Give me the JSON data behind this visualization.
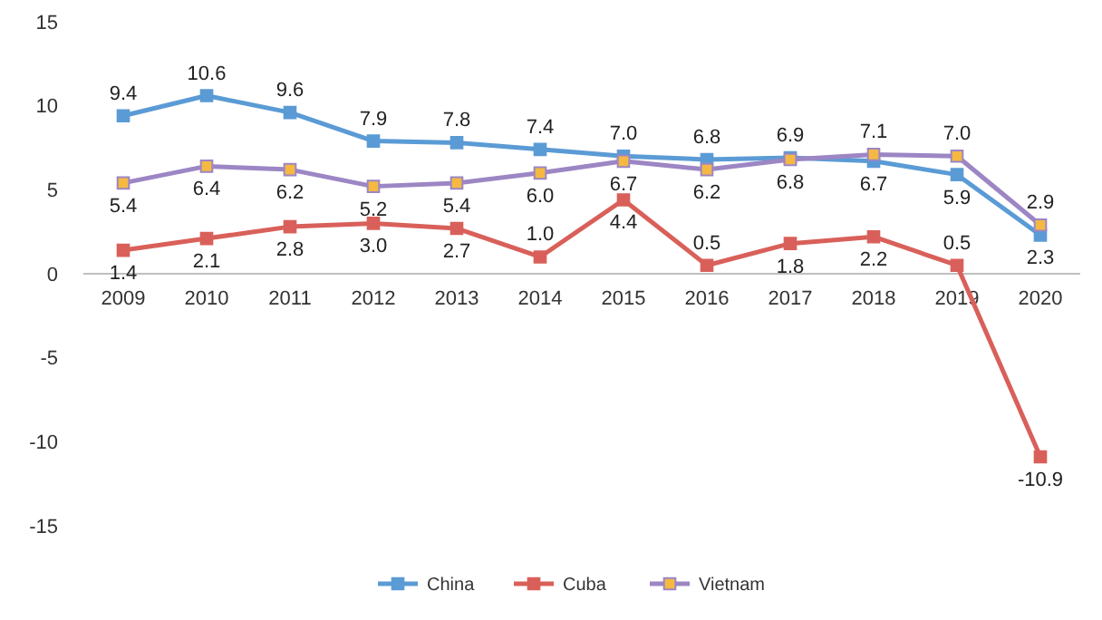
{
  "chart_data": {
    "type": "line",
    "categories": [
      "2009",
      "2010",
      "2011",
      "2012",
      "2013",
      "2014",
      "2015",
      "2016",
      "2017",
      "2018",
      "2019",
      "2020"
    ],
    "series": [
      {
        "name": "China",
        "color": "#5b9bd5",
        "values": [
          9.4,
          10.6,
          9.6,
          7.9,
          7.8,
          7.4,
          7.0,
          6.8,
          6.9,
          6.7,
          5.9,
          2.3
        ],
        "value_labels": [
          "9.4",
          "10.6",
          "9.6",
          "7.9",
          "7.8",
          "7.4",
          "7.0",
          "6.8",
          "6.9",
          "6.7",
          "5.9",
          "2.3"
        ]
      },
      {
        "name": "Cuba",
        "color": "#d9605a",
        "values": [
          1.4,
          2.1,
          2.8,
          3.0,
          2.7,
          1.0,
          4.4,
          0.5,
          1.8,
          2.2,
          0.5,
          -10.9
        ],
        "value_labels": [
          "1.4",
          "2.1",
          "2.8",
          "3.0",
          "2.7",
          "1.0",
          "4.4",
          "0.5",
          "1.8",
          "2.2",
          "0.5",
          "-10.9"
        ]
      },
      {
        "name": "Vietnam",
        "color": "#9c86c4",
        "colors": [
          "#f5b942",
          "#f5b942",
          "#f5b942",
          "#f5b942",
          "#f5b942",
          "#f5b942",
          "#f5b942",
          "#f5b942",
          "#f5b942",
          "#f5b942",
          "#f5b942",
          "#f5b942"
        ],
        "values": [
          5.4,
          6.4,
          6.2,
          5.2,
          5.4,
          6.0,
          6.7,
          6.2,
          6.8,
          7.1,
          7.0,
          2.9
        ],
        "value_labels": [
          "5.4",
          "6.4",
          "6.2",
          "5.2",
          "5.4",
          "6.0",
          "6.7",
          "6.2",
          "6.8",
          "7.1",
          "7.0",
          "2.9"
        ]
      }
    ],
    "ylim": [
      -15,
      15
    ],
    "yticks": [
      {
        "value": -15,
        "label": "-15"
      },
      {
        "value": -10,
        "label": "-10"
      },
      {
        "value": -5,
        "label": "-5"
      },
      0,
      5,
      10,
      15
    ],
    "legend": "bottom",
    "marker": "square",
    "grid": false
  }
}
